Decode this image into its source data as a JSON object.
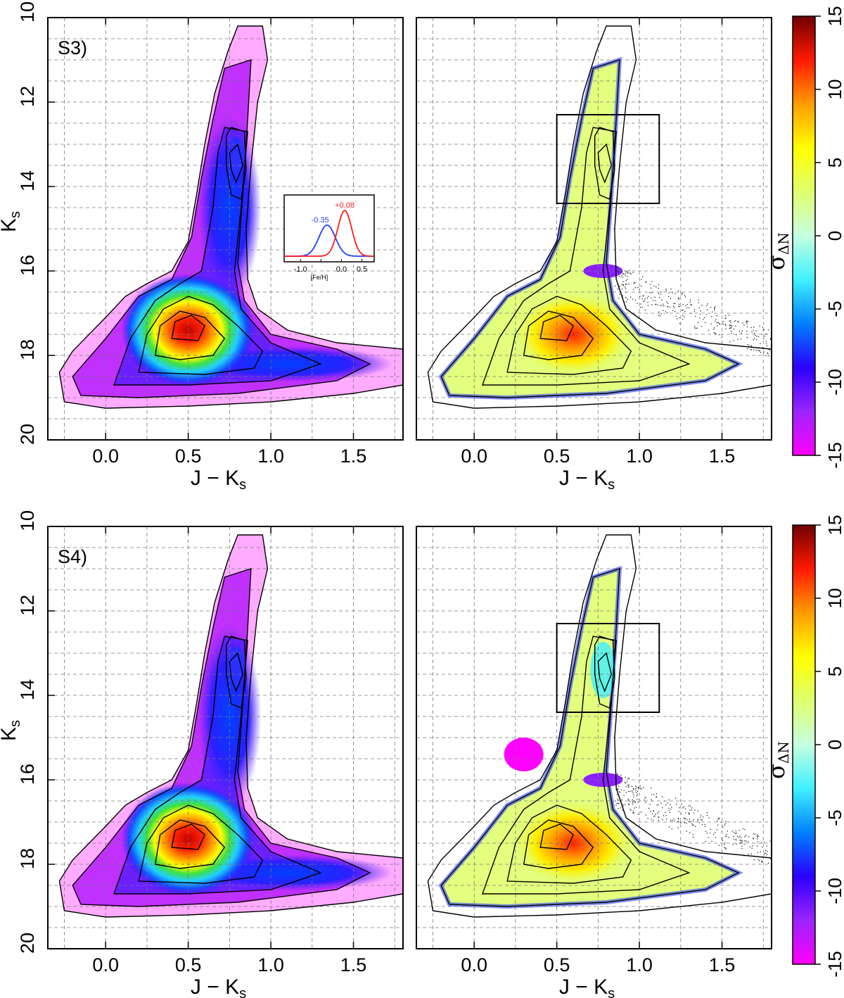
{
  "colors": {
    "inset_blue": "#1f3fff",
    "inset_red": "#ff1a1a",
    "grid": "#777777",
    "colormap": [
      "#ff00ff",
      "#9b24ff",
      "#2a00ff",
      "#0080ff",
      "#40f0ff",
      "#c6ffe0",
      "#dfff6f",
      "#ffff00",
      "#ff9c00",
      "#ff1900",
      "#700000"
    ]
  },
  "chart_data": [
    {
      "type": "heatmap",
      "panel": "S3-density",
      "label": "S3)",
      "xlabel": "J − Ks",
      "ylabel": "Ks",
      "xlim": [
        -0.35,
        1.8
      ],
      "ylim": [
        20,
        10
      ],
      "xticks": [
        0.0,
        0.5,
        1.0,
        1.5
      ],
      "xtick_labels": [
        "0.0",
        "0.5",
        "1.0",
        "1.5"
      ],
      "yticks": [
        10,
        12,
        14,
        16,
        18,
        20
      ],
      "ytick_labels": [
        "10",
        "12",
        "14",
        "16",
        "18",
        "20"
      ],
      "grid": true,
      "features": [
        {
          "name": "red clump peak",
          "x": 0.5,
          "y": 17.4
        },
        {
          "name": "red giant branch clump",
          "x": 0.78,
          "y": 13.2
        }
      ],
      "inset": {
        "type": "line",
        "xlabel": "[Fe/H]",
        "xlim": [
          -1.4,
          0.8
        ],
        "xtick_labels": [
          "-1.0",
          "-0.5",
          "0.0",
          "0.5"
        ],
        "series": [
          {
            "name": "-0.35",
            "color": "blue",
            "mean": -0.35,
            "sigma": 0.2,
            "amplitude": 0.68
          },
          {
            "name": "+0.08",
            "color": "red",
            "mean": 0.08,
            "sigma": 0.17,
            "amplitude": 1.0
          }
        ]
      }
    },
    {
      "type": "heatmap",
      "panel": "S3-residual",
      "xlabel": "J − Ks",
      "xlim": [
        -0.35,
        1.8
      ],
      "ylim": [
        20,
        10
      ],
      "xticks": [
        0.0,
        0.5,
        1.0,
        1.5
      ],
      "xtick_labels": [
        "0.0",
        "0.5",
        "1.0",
        "1.5"
      ],
      "grid": true,
      "box": {
        "x": [
          0.5,
          1.12
        ],
        "y": [
          12.3,
          14.4
        ]
      },
      "colorbar": {
        "title": "σ",
        "subscript": "ΔN",
        "range": [
          -15,
          15
        ],
        "ticks": [
          "-15",
          "-10",
          "-5",
          "0",
          "5",
          "10",
          "15"
        ]
      }
    },
    {
      "type": "heatmap",
      "panel": "S4-density",
      "label": "S4)",
      "xlabel": "J − Ks",
      "ylabel": "Ks",
      "xlim": [
        -0.35,
        1.8
      ],
      "ylim": [
        20,
        10
      ],
      "xticks": [
        0.0,
        0.5,
        1.0,
        1.5
      ],
      "xtick_labels": [
        "0.0",
        "0.5",
        "1.0",
        "1.5"
      ],
      "yticks": [
        10,
        12,
        14,
        16,
        18,
        20
      ],
      "ytick_labels": [
        "10",
        "12",
        "14",
        "16",
        "18",
        "20"
      ],
      "grid": true
    },
    {
      "type": "heatmap",
      "panel": "S4-residual",
      "xlabel": "J − Ks",
      "xlim": [
        -0.35,
        1.8
      ],
      "ylim": [
        20,
        10
      ],
      "xticks": [
        0.0,
        0.5,
        1.0,
        1.5
      ],
      "xtick_labels": [
        "0.0",
        "0.5",
        "1.0",
        "1.5"
      ],
      "grid": true,
      "box": {
        "x": [
          0.5,
          1.12
        ],
        "y": [
          12.3,
          14.4
        ]
      },
      "colorbar": {
        "title": "σ",
        "subscript": "ΔN",
        "range": [
          -15,
          15
        ],
        "ticks": [
          "-15",
          "-10",
          "-5",
          "0",
          "5",
          "10",
          "15"
        ]
      }
    }
  ]
}
